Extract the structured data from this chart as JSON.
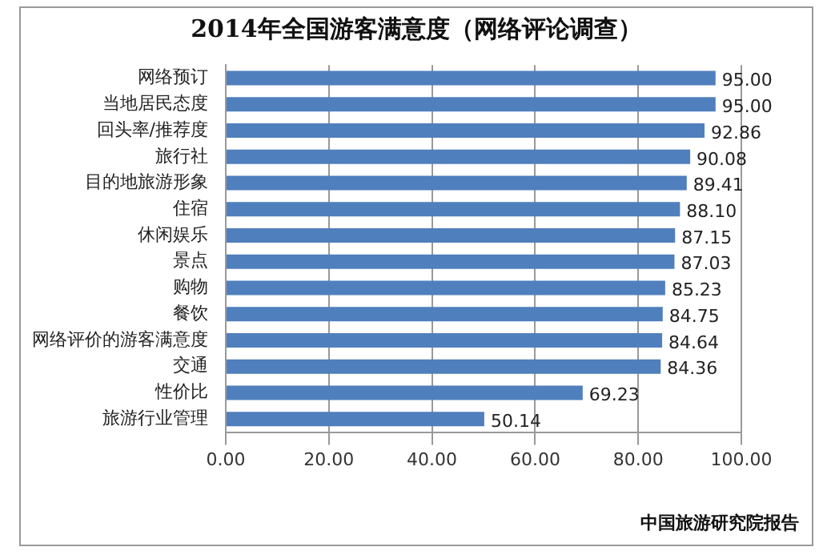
{
  "chart_data": {
    "type": "bar",
    "orientation": "horizontal",
    "title": "2014年全国游客满意度（网络评论调查）",
    "categories": [
      "网络预订",
      "当地居民态度",
      "回头率/推荐度",
      "旅行社",
      "目的地旅游形象",
      "住宿",
      "休闲娱乐",
      "景点",
      "购物",
      "餐饮",
      "网络评价的游客满意度",
      "交通",
      "性价比",
      "旅游行业管理"
    ],
    "values": [
      95.0,
      95.0,
      92.86,
      90.08,
      89.41,
      88.1,
      87.15,
      87.03,
      85.23,
      84.75,
      84.64,
      84.36,
      69.23,
      50.14
    ],
    "value_labels": [
      "95.00",
      "95.00",
      "92.86",
      "90.08",
      "89.41",
      "88.10",
      "87.15",
      "87.03",
      "85.23",
      "84.75",
      "84.64",
      "84.36",
      "69.23",
      "50.14"
    ],
    "color": "#4f7fbd",
    "xlim": [
      0,
      100
    ],
    "xticks": [
      {
        "value": 0,
        "label": "0.00"
      },
      {
        "value": 20,
        "label": "20.00"
      },
      {
        "value": 40,
        "label": "40.00"
      },
      {
        "value": 60,
        "label": "60.00"
      },
      {
        "value": 80,
        "label": "80.00"
      },
      {
        "value": 100,
        "label": "100.00"
      }
    ],
    "grid": "x",
    "legend": false,
    "annotations": [
      "中国旅游研究院报告"
    ]
  }
}
